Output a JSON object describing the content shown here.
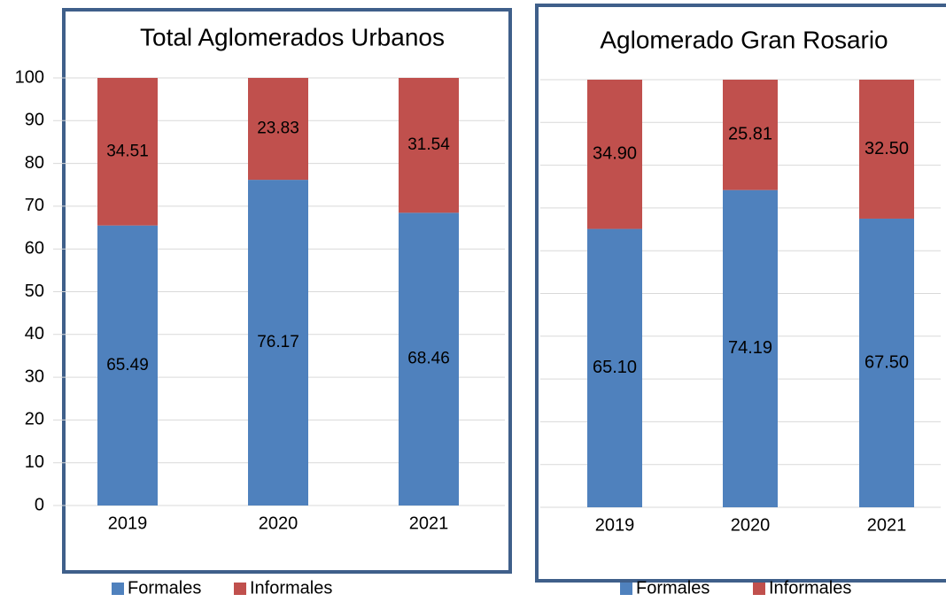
{
  "chart_data": [
    {
      "type": "bar",
      "stacked": true,
      "title": "Total Aglomerados Urbanos",
      "categories": [
        "2019",
        "2020",
        "2021"
      ],
      "series": [
        {
          "name": "Formales",
          "color": "#4f81bd",
          "values": [
            65.49,
            76.17,
            68.46
          ]
        },
        {
          "name": "Informales",
          "color": "#c0504d",
          "values": [
            34.51,
            23.83,
            31.54
          ]
        }
      ],
      "ylim": [
        0,
        100
      ],
      "yticks": [
        0,
        10,
        20,
        30,
        40,
        50,
        60,
        70,
        80,
        90,
        100
      ],
      "ytick_labels": true,
      "grid": true,
      "legend": "bottom"
    },
    {
      "type": "bar",
      "stacked": true,
      "title": "Aglomerado Gran Rosario",
      "categories": [
        "2019",
        "2020",
        "2021"
      ],
      "series": [
        {
          "name": "Formales",
          "color": "#4f81bd",
          "values": [
            65.1,
            74.19,
            67.5
          ],
          "value_labels": [
            "65.10",
            "74.19",
            "67.50"
          ]
        },
        {
          "name": "Informales",
          "color": "#c0504d",
          "values": [
            34.9,
            25.81,
            32.5
          ],
          "value_labels": [
            "34.90",
            "25.81",
            "32.50"
          ]
        }
      ],
      "ylim": [
        0,
        100
      ],
      "yticks": [
        0,
        10,
        20,
        30,
        40,
        50,
        60,
        70,
        80,
        90,
        100
      ],
      "ytick_labels": false,
      "grid": true,
      "legend": "bottom"
    }
  ]
}
